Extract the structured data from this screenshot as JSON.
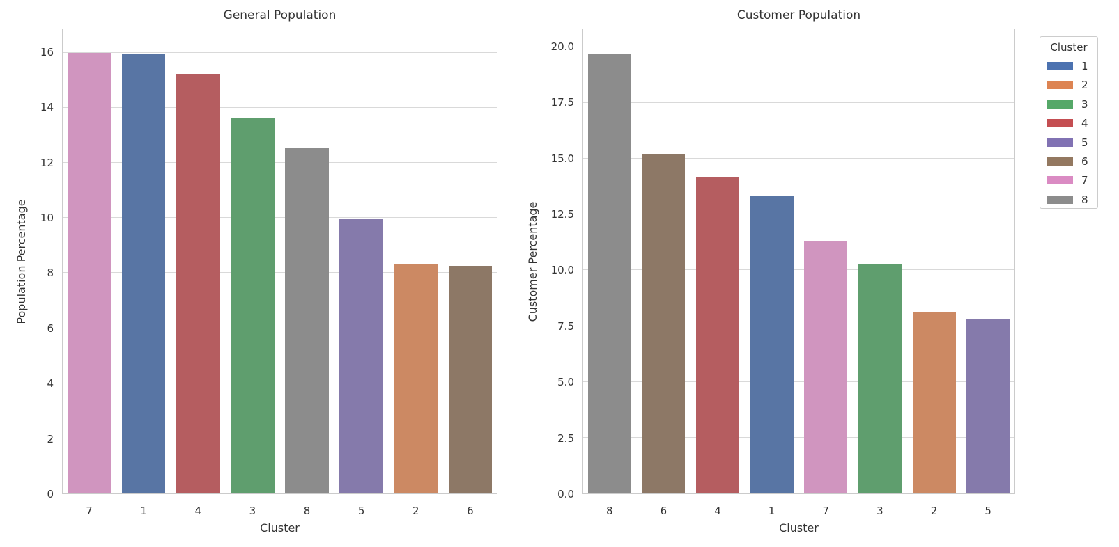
{
  "figure": {
    "background": "#ffffff",
    "text_color": "#333333",
    "grid_color": "#d9d9d9",
    "spine_color": "#cbcbcb"
  },
  "legend": {
    "title": "Cluster",
    "position": "upper-right-outside",
    "items": [
      {
        "label": "1",
        "color": "#4C72B0"
      },
      {
        "label": "2",
        "color": "#DD8452"
      },
      {
        "label": "3",
        "color": "#55A868"
      },
      {
        "label": "4",
        "color": "#C44E52"
      },
      {
        "label": "5",
        "color": "#8172B3"
      },
      {
        "label": "6",
        "color": "#937860"
      },
      {
        "label": "7",
        "color": "#DA8BC3"
      },
      {
        "label": "8",
        "color": "#8C8C8C"
      }
    ]
  },
  "chart_data": [
    {
      "type": "bar",
      "title": "General Population",
      "xlabel": "Cluster",
      "ylabel": "Population Percentage",
      "ylim": [
        0,
        16.85
      ],
      "grid": true,
      "yticks": [
        0,
        2,
        4,
        6,
        8,
        10,
        12,
        14,
        16
      ],
      "ytick_labels": [
        "0",
        "2",
        "4",
        "6",
        "8",
        "10",
        "12",
        "14",
        "16"
      ],
      "categories": [
        "7",
        "1",
        "4",
        "3",
        "8",
        "5",
        "2",
        "6"
      ],
      "values": [
        16.0,
        15.95,
        15.2,
        13.65,
        12.55,
        9.95,
        8.3,
        8.25
      ],
      "bar_colors": [
        "#D095BF",
        "#5875A4",
        "#B55D60",
        "#5F9E6E",
        "#8C8C8C",
        "#857AAB",
        "#CC8963",
        "#8D7866"
      ]
    },
    {
      "type": "bar",
      "title": "Customer Population",
      "xlabel": "Cluster",
      "ylabel": "Customer Percentage",
      "ylim": [
        0,
        20.8
      ],
      "grid": true,
      "yticks": [
        0,
        2.5,
        5,
        7.5,
        10,
        12.5,
        15,
        17.5,
        20
      ],
      "ytick_labels": [
        "0.0",
        "2.5",
        "5.0",
        "7.5",
        "10.0",
        "12.5",
        "15.0",
        "17.5",
        "20.0"
      ],
      "categories": [
        "8",
        "6",
        "4",
        "1",
        "7",
        "3",
        "2",
        "5"
      ],
      "values": [
        19.7,
        15.2,
        14.2,
        13.35,
        11.3,
        10.3,
        8.15,
        7.8
      ],
      "bar_colors": [
        "#8C8C8C",
        "#8D7866",
        "#B55D60",
        "#5875A4",
        "#D095BF",
        "#5F9E6E",
        "#CC8963",
        "#857AAB"
      ]
    }
  ]
}
